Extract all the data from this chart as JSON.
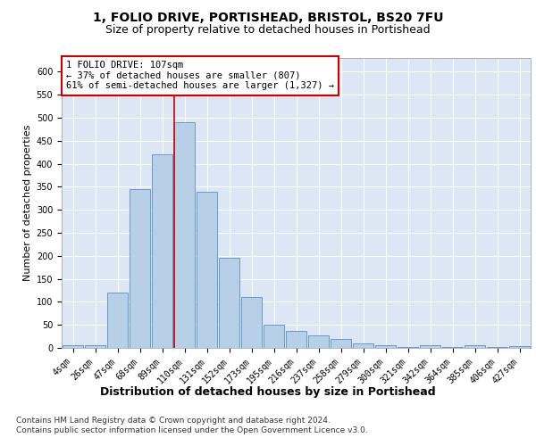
{
  "title1": "1, FOLIO DRIVE, PORTISHEAD, BRISTOL, BS20 7FU",
  "title2": "Size of property relative to detached houses in Portishead",
  "xlabel": "Distribution of detached houses by size in Portishead",
  "ylabel": "Number of detached properties",
  "categories": [
    "4sqm",
    "26sqm",
    "47sqm",
    "68sqm",
    "89sqm",
    "110sqm",
    "131sqm",
    "152sqm",
    "173sqm",
    "195sqm",
    "216sqm",
    "237sqm",
    "258sqm",
    "279sqm",
    "300sqm",
    "321sqm",
    "342sqm",
    "364sqm",
    "385sqm",
    "406sqm",
    "427sqm"
  ],
  "values": [
    6,
    6,
    120,
    345,
    420,
    490,
    340,
    195,
    110,
    50,
    36,
    27,
    20,
    10,
    5,
    2,
    5,
    2,
    5,
    2,
    3
  ],
  "bar_color": "#b8cfe8",
  "bar_edge_color": "#6699cc",
  "vline_color": "#cc0000",
  "annotation_text": "1 FOLIO DRIVE: 107sqm\n← 37% of detached houses are smaller (807)\n61% of semi-detached houses are larger (1,327) →",
  "annotation_box_color": "#ffffff",
  "annotation_box_edge": "#cc0000",
  "ylim": [
    0,
    630
  ],
  "yticks": [
    0,
    50,
    100,
    150,
    200,
    250,
    300,
    350,
    400,
    450,
    500,
    550,
    600
  ],
  "footer": "Contains HM Land Registry data © Crown copyright and database right 2024.\nContains public sector information licensed under the Open Government Licence v3.0.",
  "bg_color": "#dce6f5",
  "grid_color": "#ffffff",
  "title1_fontsize": 10,
  "title2_fontsize": 9,
  "xlabel_fontsize": 9,
  "ylabel_fontsize": 8,
  "tick_fontsize": 7,
  "footer_fontsize": 6.5,
  "annot_fontsize": 7.5
}
